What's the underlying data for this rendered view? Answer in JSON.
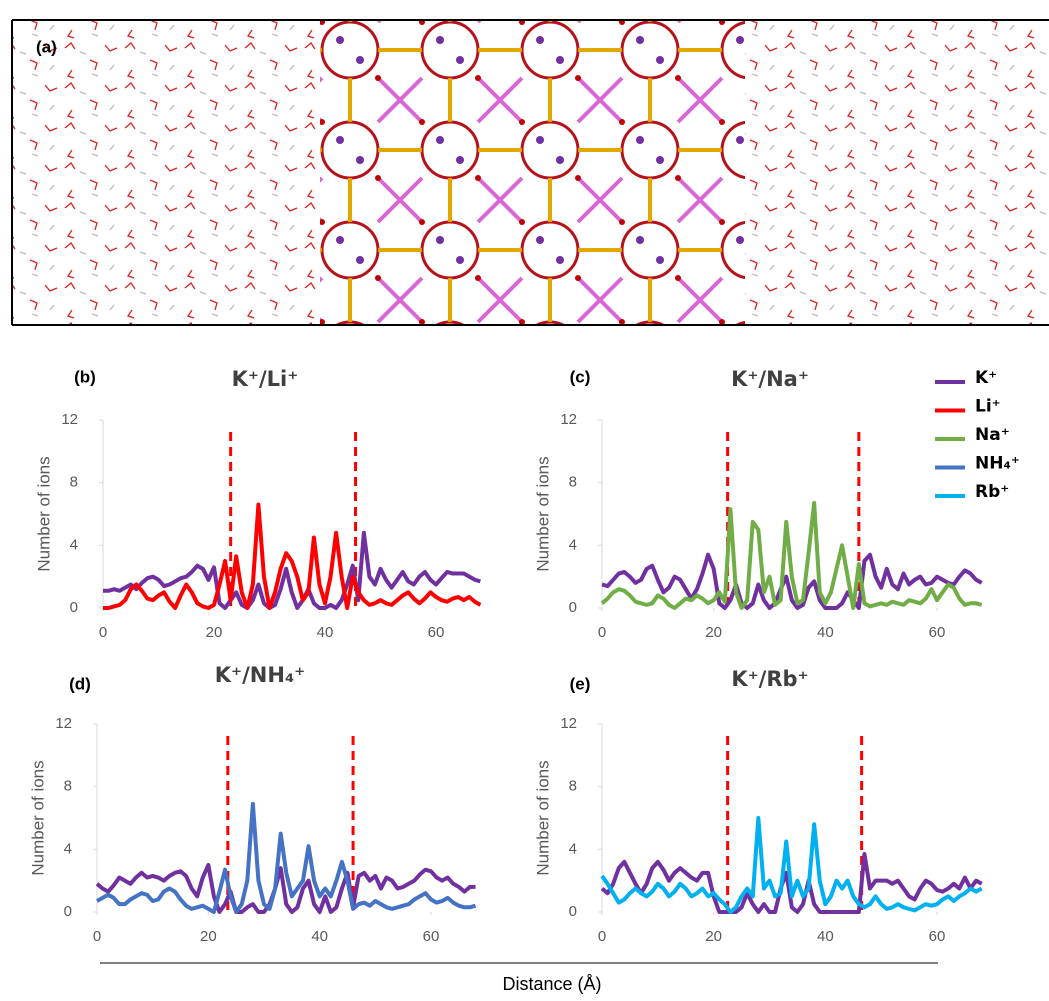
{
  "figure": {
    "panel_a_label": "(a)",
    "xlabel": "Distance (Å)"
  },
  "legend": {
    "position": "right"
  },
  "chart_data": [
    {
      "type": "line",
      "label": "(b)",
      "title": "K⁺/Li⁺",
      "ylabel": "Number of ions",
      "x": [
        0,
        1,
        2,
        3,
        4,
        5,
        6,
        7,
        8,
        9,
        10,
        11,
        12,
        13,
        14,
        15,
        16,
        17,
        18,
        19,
        20,
        21,
        22,
        23,
        24,
        25,
        26,
        27,
        28,
        29,
        30,
        31,
        32,
        33,
        34,
        35,
        36,
        37,
        38,
        39,
        40,
        41,
        42,
        43,
        44,
        45,
        46,
        47,
        48,
        49,
        50,
        51,
        52,
        53,
        54,
        55,
        56,
        57,
        58,
        59,
        60,
        61,
        62,
        63,
        64,
        65,
        66,
        67,
        68
      ],
      "series": [
        {
          "name": "K⁺",
          "color": "#7030a0",
          "values": [
            1.1,
            1.1,
            1.2,
            1.1,
            1.3,
            1.5,
            1.2,
            1.6,
            1.9,
            2.0,
            1.8,
            1.4,
            1.5,
            1.7,
            1.9,
            2.0,
            2.3,
            2.7,
            2.5,
            1.8,
            2.6,
            0.3,
            0,
            0.5,
            1.0,
            0.2,
            0,
            0.5,
            1.5,
            0.3,
            0,
            0.2,
            1.2,
            2.5,
            1.0,
            0,
            0.5,
            1.2,
            0.3,
            0,
            0,
            0.2,
            0,
            0.5,
            1.5,
            2.7,
            0.5,
            4.8,
            2.0,
            1.5,
            2.5,
            1.8,
            1.3,
            1.8,
            2.3,
            1.7,
            1.5,
            2.0,
            2.3,
            1.8,
            1.5,
            1.9,
            2.3,
            2.2,
            2.2,
            2.2,
            2.0,
            1.8,
            1.7
          ]
        },
        {
          "name": "Li⁺",
          "color": "#ff0000",
          "values": [
            0,
            0,
            0.1,
            0.2,
            0.5,
            1.2,
            1.5,
            1.1,
            0.6,
            0.5,
            0.8,
            1.0,
            0.4,
            0,
            0.8,
            1.5,
            1.0,
            0.3,
            0.1,
            0,
            0.2,
            1.5,
            3.0,
            0.5,
            3.3,
            1.0,
            0,
            1.5,
            6.6,
            2.0,
            0,
            1.0,
            2.5,
            3.5,
            3.0,
            2.0,
            0.5,
            1.0,
            4.5,
            1.5,
            0.3,
            2.0,
            4.8,
            2.0,
            0,
            2.0,
            1.0,
            0.5,
            0.2,
            0.3,
            0.5,
            0.3,
            0.2,
            0.5,
            0.8,
            1.0,
            0.6,
            0.3,
            0.6,
            1.0,
            0.7,
            0.5,
            0.4,
            0.6,
            0.7,
            0.5,
            0.7,
            0.4,
            0.2
          ]
        }
      ],
      "xlim": [
        0,
        68
      ],
      "ylim": [
        0,
        12
      ],
      "xticks": [
        0,
        20,
        40,
        60
      ],
      "yticks": [
        0,
        4,
        8,
        12
      ],
      "vlines": [
        23,
        45.5
      ],
      "vline_color": "#ff0000"
    },
    {
      "type": "line",
      "label": "(c)",
      "title": "K⁺/Na⁺",
      "ylabel": "Number of ions",
      "x": [
        0,
        1,
        2,
        3,
        4,
        5,
        6,
        7,
        8,
        9,
        10,
        11,
        12,
        13,
        14,
        15,
        16,
        17,
        18,
        19,
        20,
        21,
        22,
        23,
        24,
        25,
        26,
        27,
        28,
        29,
        30,
        31,
        32,
        33,
        34,
        35,
        36,
        37,
        38,
        39,
        40,
        41,
        42,
        43,
        44,
        45,
        46,
        47,
        48,
        49,
        50,
        51,
        52,
        53,
        54,
        55,
        56,
        57,
        58,
        59,
        60,
        61,
        62,
        63,
        64,
        65,
        66,
        67,
        68
      ],
      "series": [
        {
          "name": "K⁺",
          "color": "#7030a0",
          "values": [
            1.5,
            1.4,
            1.8,
            2.2,
            2.3,
            2.0,
            1.6,
            1.8,
            2.5,
            2.7,
            1.8,
            1.0,
            1.3,
            2.0,
            1.8,
            1.2,
            0.6,
            1.2,
            2.2,
            3.4,
            2.5,
            0.3,
            0,
            0.5,
            1.5,
            0.3,
            0,
            0.3,
            1.5,
            0.5,
            0,
            0.3,
            1.2,
            2.0,
            0.5,
            0,
            0.2,
            1.3,
            1.7,
            0.5,
            0,
            0,
            0,
            0.3,
            1.0,
            0.5,
            0,
            3.0,
            3.4,
            2.0,
            1.3,
            2.5,
            1.5,
            1.2,
            2.2,
            1.5,
            1.8,
            2.0,
            1.5,
            1.6,
            2.0,
            1.8,
            1.6,
            1.5,
            2.0,
            2.4,
            2.2,
            1.8,
            1.6
          ]
        },
        {
          "name": "Na⁺",
          "color": "#70ad47",
          "values": [
            0.3,
            0.6,
            1.0,
            1.2,
            1.1,
            0.8,
            0.4,
            0.3,
            0.2,
            0.3,
            0.8,
            0.6,
            0.2,
            0,
            0.3,
            0.6,
            0.5,
            0.8,
            0.6,
            0.3,
            0.5,
            1.0,
            0.4,
            6.3,
            1.0,
            0,
            0.5,
            5.5,
            5.0,
            1.0,
            2.0,
            0.2,
            0.5,
            5.5,
            2.0,
            0.3,
            0.5,
            3.5,
            6.7,
            1.0,
            0.3,
            1.0,
            2.5,
            4.0,
            2.0,
            0,
            2.8,
            0.3,
            0.1,
            0.2,
            0.3,
            0.2,
            0.4,
            0.3,
            0.2,
            0.5,
            0.4,
            0.3,
            0.6,
            1.2,
            0.5,
            1.0,
            1.5,
            1.3,
            0.6,
            0.2,
            0.3,
            0.3,
            0.2
          ]
        }
      ],
      "xlim": [
        0,
        68
      ],
      "ylim": [
        0,
        12
      ],
      "xticks": [
        0,
        20,
        40,
        60
      ],
      "yticks": [
        0,
        4,
        8,
        12
      ],
      "vlines": [
        22.5,
        46
      ],
      "vline_color": "#ff0000"
    },
    {
      "type": "line",
      "label": "(d)",
      "title": "K⁺/NH₄⁺",
      "ylabel": "Number of ions",
      "x": [
        0,
        1,
        2,
        3,
        4,
        5,
        6,
        7,
        8,
        9,
        10,
        11,
        12,
        13,
        14,
        15,
        16,
        17,
        18,
        19,
        20,
        21,
        22,
        23,
        24,
        25,
        26,
        27,
        28,
        29,
        30,
        31,
        32,
        33,
        34,
        35,
        36,
        37,
        38,
        39,
        40,
        41,
        42,
        43,
        44,
        45,
        46,
        47,
        48,
        49,
        50,
        51,
        52,
        53,
        54,
        55,
        56,
        57,
        58,
        59,
        60,
        61,
        62,
        63,
        64,
        65,
        66,
        67,
        68
      ],
      "series": [
        {
          "name": "K⁺",
          "color": "#7030a0",
          "values": [
            1.8,
            1.5,
            1.3,
            1.7,
            2.2,
            2.0,
            1.8,
            2.2,
            2.5,
            2.2,
            2.3,
            2.2,
            2.0,
            2.3,
            2.5,
            2.6,
            2.3,
            1.5,
            1.0,
            2.2,
            3.0,
            1.0,
            0,
            0.5,
            1.3,
            0,
            0,
            0.3,
            0.5,
            0,
            0,
            0.5,
            1.5,
            2.8,
            0.5,
            0,
            0.3,
            1.5,
            2.0,
            0.5,
            0,
            1.0,
            0,
            0.3,
            1.5,
            2.5,
            0.3,
            2.3,
            2.5,
            2.0,
            2.3,
            1.5,
            2.2,
            2.0,
            1.5,
            1.6,
            1.8,
            2.0,
            2.4,
            2.7,
            2.6,
            2.2,
            2.0,
            2.2,
            1.8,
            1.6,
            1.3,
            1.6,
            1.6
          ]
        },
        {
          "name": "NH₄⁺",
          "color": "#4472c4",
          "values": [
            0.7,
            0.9,
            1.1,
            0.9,
            0.5,
            0.5,
            0.8,
            1.0,
            1.2,
            1.1,
            0.7,
            0.8,
            1.3,
            1.5,
            1.3,
            0.8,
            0.4,
            0.2,
            0.3,
            0.4,
            0.2,
            0,
            1.3,
            2.7,
            1.0,
            0,
            0.5,
            2.0,
            6.9,
            2.0,
            0.5,
            0.2,
            1.5,
            5.0,
            2.5,
            1.0,
            1.5,
            2.0,
            4.2,
            2.0,
            1.0,
            1.5,
            1.0,
            2.0,
            3.2,
            2.0,
            0.2,
            0.5,
            0.6,
            0.4,
            0.7,
            0.5,
            0.3,
            0.2,
            0.3,
            0.4,
            0.5,
            0.8,
            1.0,
            1.2,
            0.8,
            0.6,
            0.7,
            0.9,
            0.6,
            0.4,
            0.3,
            0.3,
            0.4
          ]
        }
      ],
      "xlim": [
        0,
        68
      ],
      "ylim": [
        0,
        12
      ],
      "xticks": [
        0,
        20,
        40,
        60
      ],
      "yticks": [
        0,
        4,
        8,
        12
      ],
      "vlines": [
        23.5,
        46
      ],
      "vline_color": "#ff0000"
    },
    {
      "type": "line",
      "label": "(e)",
      "title": "K⁺/Rb⁺",
      "ylabel": "Number of ions",
      "x": [
        0,
        1,
        2,
        3,
        4,
        5,
        6,
        7,
        8,
        9,
        10,
        11,
        12,
        13,
        14,
        15,
        16,
        17,
        18,
        19,
        20,
        21,
        22,
        23,
        24,
        25,
        26,
        27,
        28,
        29,
        30,
        31,
        32,
        33,
        34,
        35,
        36,
        37,
        38,
        39,
        40,
        41,
        42,
        43,
        44,
        45,
        46,
        47,
        48,
        49,
        50,
        51,
        52,
        53,
        54,
        55,
        56,
        57,
        58,
        59,
        60,
        61,
        62,
        63,
        64,
        65,
        66,
        67,
        68
      ],
      "series": [
        {
          "name": "K⁺",
          "color": "#7030a0",
          "values": [
            1.5,
            1.2,
            1.8,
            2.8,
            3.2,
            2.5,
            1.8,
            1.2,
            1.8,
            2.8,
            3.2,
            2.7,
            2.0,
            2.5,
            2.8,
            2.5,
            2.2,
            2.0,
            2.5,
            2.5,
            1.0,
            0,
            0,
            0,
            0,
            0.3,
            1.2,
            0.5,
            0,
            0.5,
            0,
            0,
            1.5,
            2.5,
            0.3,
            0,
            0.5,
            2.0,
            0.5,
            0,
            0,
            0,
            0,
            0,
            0,
            0,
            0,
            3.7,
            1.5,
            2.0,
            2.0,
            2.0,
            1.8,
            2.0,
            1.5,
            1.0,
            0.8,
            1.5,
            2.0,
            1.8,
            1.4,
            1.3,
            1.5,
            1.8,
            1.5,
            2.2,
            1.5,
            2.0,
            1.8
          ]
        },
        {
          "name": "Rb⁺",
          "color": "#00b0f0",
          "values": [
            2.3,
            1.8,
            1.2,
            0.6,
            0.8,
            1.2,
            1.5,
            1.2,
            1.0,
            1.3,
            1.8,
            1.5,
            1.0,
            1.3,
            1.8,
            1.5,
            1.0,
            1.2,
            1.5,
            1.0,
            1.2,
            0.8,
            0.5,
            0,
            0.3,
            1.0,
            1.5,
            1.0,
            6.0,
            1.5,
            2.0,
            1.0,
            1.2,
            4.5,
            1.0,
            2.0,
            1.0,
            1.5,
            5.6,
            2.0,
            0.5,
            1.0,
            2.0,
            1.5,
            2.0,
            1.0,
            0.5,
            0.3,
            0.5,
            1.0,
            0.5,
            0.2,
            0.3,
            0.5,
            0.3,
            0.2,
            0.1,
            0.3,
            0.5,
            0.4,
            0.5,
            0.8,
            1.0,
            0.7,
            1.0,
            1.2,
            1.5,
            1.3,
            1.5
          ]
        }
      ],
      "xlim": [
        0,
        68
      ],
      "ylim": [
        0,
        12
      ],
      "xticks": [
        0,
        20,
        40,
        60
      ],
      "yticks": [
        0,
        4,
        8,
        12
      ],
      "vlines": [
        22.5,
        46.5
      ],
      "vline_color": "#ff0000"
    }
  ]
}
